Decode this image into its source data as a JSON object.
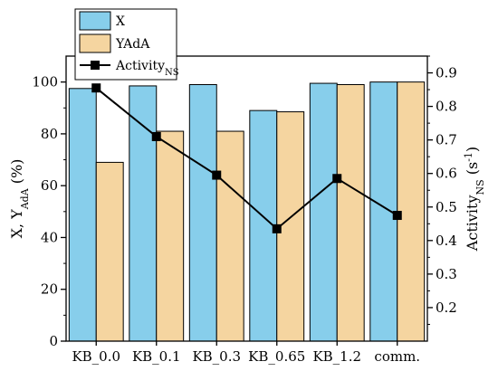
{
  "chart_data": {
    "type": "bar",
    "categories": [
      "KB_0.0",
      "KB_0.1",
      "KB_0.3",
      "KB_0.65",
      "KB_1.2",
      "comm."
    ],
    "series": [
      {
        "name": "X",
        "axis": "left",
        "type": "bar",
        "color": "#87ceeb",
        "values": [
          97.5,
          98.5,
          99,
          89,
          99.5,
          100
        ]
      },
      {
        "name": "YAdA",
        "axis": "left",
        "type": "bar",
        "color": "#f5d5a0",
        "values": [
          69,
          81,
          81,
          88.5,
          99,
          100
        ]
      },
      {
        "name": "Activity",
        "name_sub": "NS",
        "axis": "right",
        "type": "line",
        "marker": "square",
        "color": "#000000",
        "values": [
          0.855,
          0.71,
          0.595,
          0.435,
          0.585,
          0.475
        ]
      }
    ],
    "y_left": {
      "label_main": "X, Y",
      "label_sub": "AdA",
      "label_tail": " (%)",
      "lim": [
        0,
        110
      ],
      "ticks": [
        0,
        20,
        40,
        60,
        80,
        100
      ]
    },
    "y_right": {
      "label_main": "Activity",
      "label_sub": "NS",
      "label_tail": " (s",
      "label_sup": "-1",
      "label_close": ")",
      "lim": [
        0.1,
        0.95
      ],
      "ticks": [
        0.2,
        0.3,
        0.4,
        0.5,
        0.6,
        0.7,
        0.8,
        0.9
      ]
    },
    "grid": false,
    "legend": {
      "placement": "top-left"
    }
  }
}
